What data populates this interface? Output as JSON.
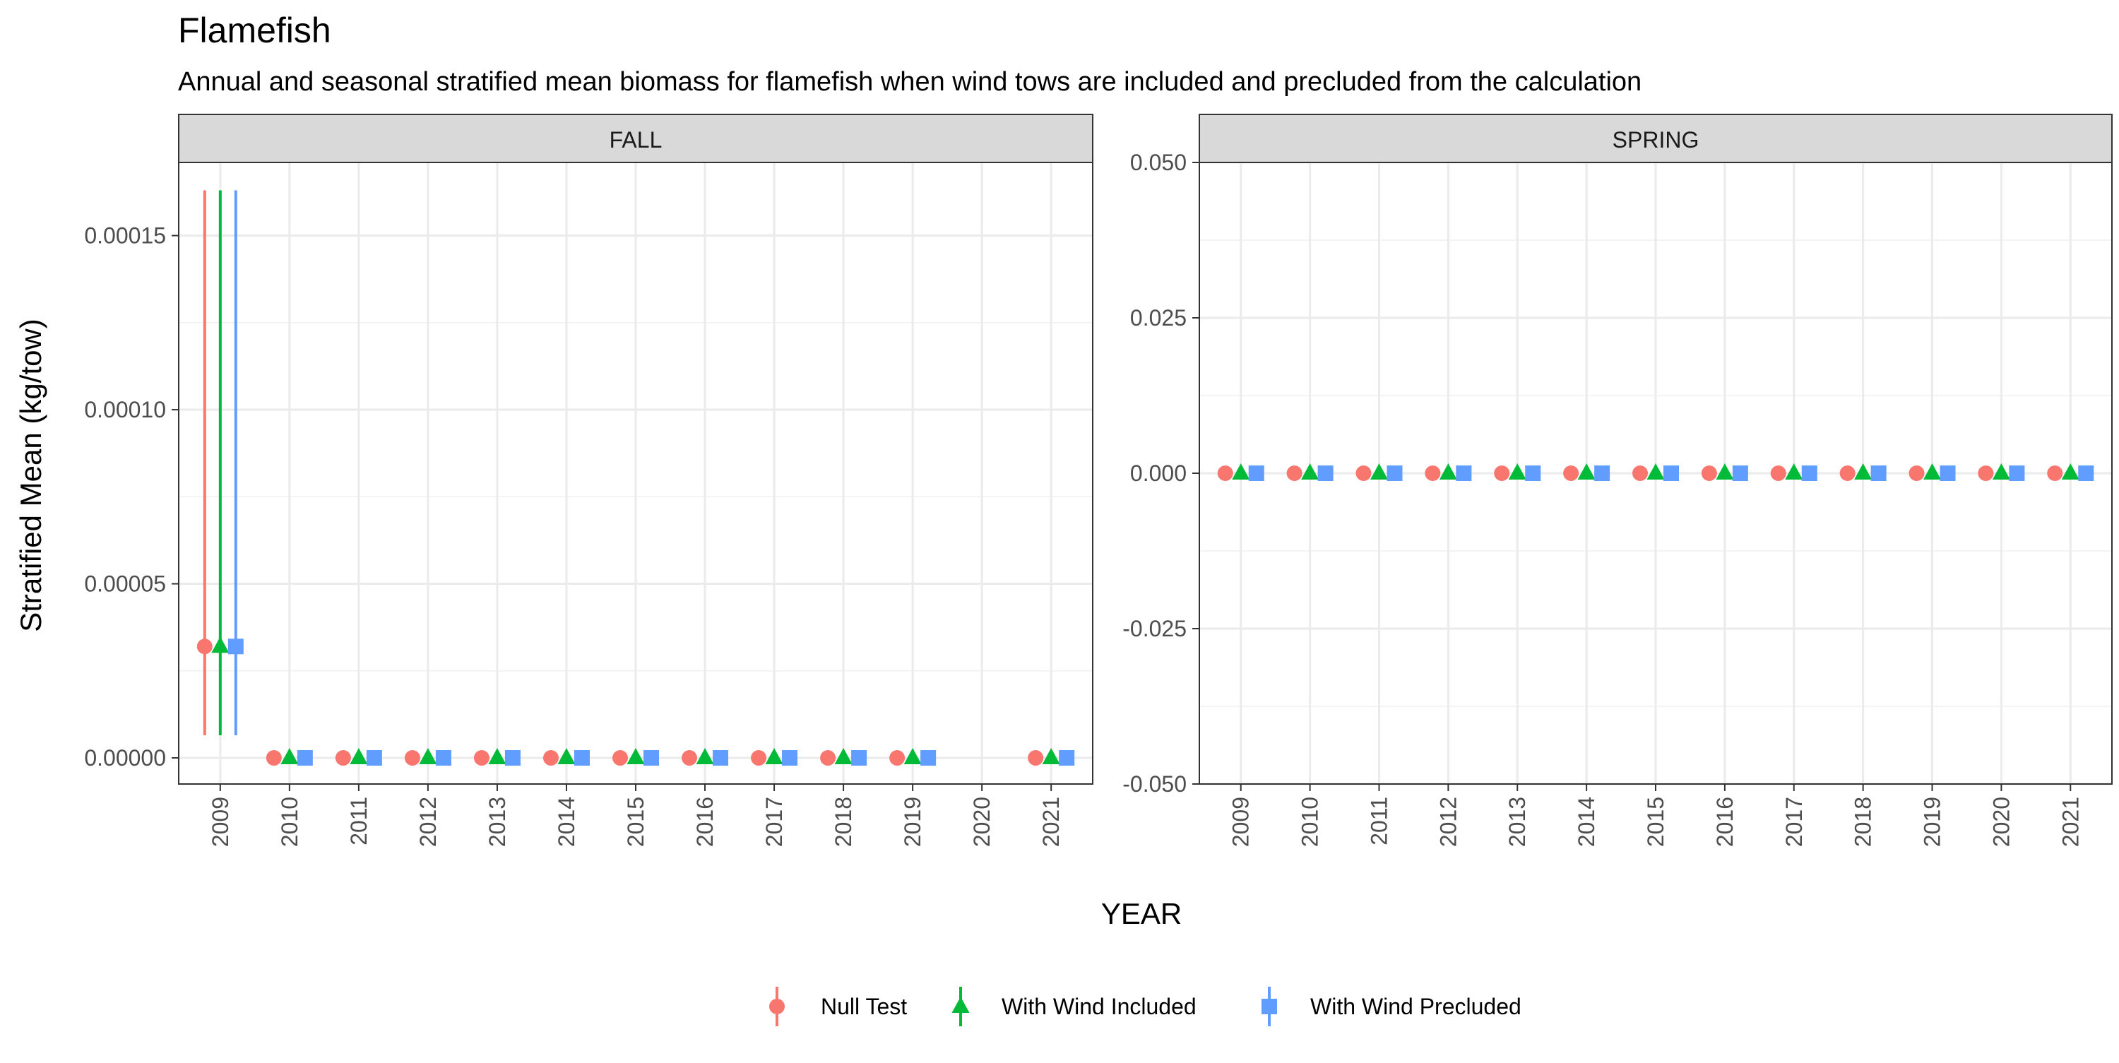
{
  "chart_data": {
    "type": "scatter",
    "title": "Flamefish",
    "subtitle": "Annual and seasonal stratified mean biomass for flamefish when wind tows are included and precluded from the calculation",
    "xlabel": "YEAR",
    "ylabel": "Stratified Mean (kg/tow)",
    "grid": true,
    "legend_position": "bottom",
    "categories": [
      "2009",
      "2010",
      "2011",
      "2012",
      "2013",
      "2014",
      "2015",
      "2016",
      "2017",
      "2018",
      "2019",
      "2020",
      "2021"
    ],
    "series_styles": [
      {
        "name": "Null Test",
        "color": "#F8766D",
        "shape": "circle"
      },
      {
        "name": "With Wind Included",
        "color": "#00BA38",
        "shape": "triangle"
      },
      {
        "name": "With Wind Precluded",
        "color": "#619CFF",
        "shape": "square"
      }
    ],
    "panels": [
      {
        "strip": "FALL",
        "ylim": [
          -7.5e-06,
          0.000171
        ],
        "yticks": [
          "0.00000",
          "0.00005",
          "0.00010",
          "0.00015"
        ],
        "ytick_values": [
          0,
          5e-05,
          0.0001,
          0.00015
        ],
        "series": [
          {
            "name": "Null Test",
            "values": [
              3.2e-05,
              0,
              0,
              0,
              0,
              0,
              0,
              0,
              0,
              0,
              0,
              null,
              0
            ],
            "lower": [
              6.5e-06,
              0,
              0,
              0,
              0,
              0,
              0,
              0,
              0,
              0,
              0,
              null,
              0
            ],
            "upper": [
              0.000163,
              0,
              0,
              0,
              0,
              0,
              0,
              0,
              0,
              0,
              0,
              null,
              0
            ]
          },
          {
            "name": "With Wind Included",
            "values": [
              3.2e-05,
              0,
              0,
              0,
              0,
              0,
              0,
              0,
              0,
              0,
              0,
              null,
              0
            ],
            "lower": [
              6.5e-06,
              0,
              0,
              0,
              0,
              0,
              0,
              0,
              0,
              0,
              0,
              null,
              0
            ],
            "upper": [
              0.000163,
              0,
              0,
              0,
              0,
              0,
              0,
              0,
              0,
              0,
              0,
              null,
              0
            ]
          },
          {
            "name": "With Wind Precluded",
            "values": [
              3.2e-05,
              0,
              0,
              0,
              0,
              0,
              0,
              0,
              0,
              0,
              0,
              null,
              0
            ],
            "lower": [
              6.5e-06,
              0,
              0,
              0,
              0,
              0,
              0,
              0,
              0,
              0,
              0,
              null,
              0
            ],
            "upper": [
              0.000163,
              0,
              0,
              0,
              0,
              0,
              0,
              0,
              0,
              0,
              0,
              null,
              0
            ]
          }
        ]
      },
      {
        "strip": "SPRING",
        "ylim": [
          -0.05,
          0.05
        ],
        "yticks": [
          "-0.050",
          "-0.025",
          "0.000",
          "0.025",
          "0.050"
        ],
        "ytick_values": [
          -0.05,
          -0.025,
          0,
          0.025,
          0.05
        ],
        "series": [
          {
            "name": "Null Test",
            "values": [
              0,
              0,
              0,
              0,
              0,
              0,
              0,
              0,
              0,
              0,
              0,
              0,
              0
            ],
            "lower": [
              0,
              0,
              0,
              0,
              0,
              0,
              0,
              0,
              0,
              0,
              0,
              0,
              0
            ],
            "upper": [
              0,
              0,
              0,
              0,
              0,
              0,
              0,
              0,
              0,
              0,
              0,
              0,
              0
            ]
          },
          {
            "name": "With Wind Included",
            "values": [
              0,
              0,
              0,
              0,
              0,
              0,
              0,
              0,
              0,
              0,
              0,
              0,
              0
            ],
            "lower": [
              0,
              0,
              0,
              0,
              0,
              0,
              0,
              0,
              0,
              0,
              0,
              0,
              0
            ],
            "upper": [
              0,
              0,
              0,
              0,
              0,
              0,
              0,
              0,
              0,
              0,
              0,
              0,
              0
            ]
          },
          {
            "name": "With Wind Precluded",
            "values": [
              0,
              0,
              0,
              0,
              0,
              0,
              0,
              0,
              0,
              0,
              0,
              0,
              0
            ],
            "lower": [
              0,
              0,
              0,
              0,
              0,
              0,
              0,
              0,
              0,
              0,
              0,
              0,
              0
            ],
            "upper": [
              0,
              0,
              0,
              0,
              0,
              0,
              0,
              0,
              0,
              0,
              0,
              0,
              0
            ]
          }
        ]
      }
    ]
  }
}
